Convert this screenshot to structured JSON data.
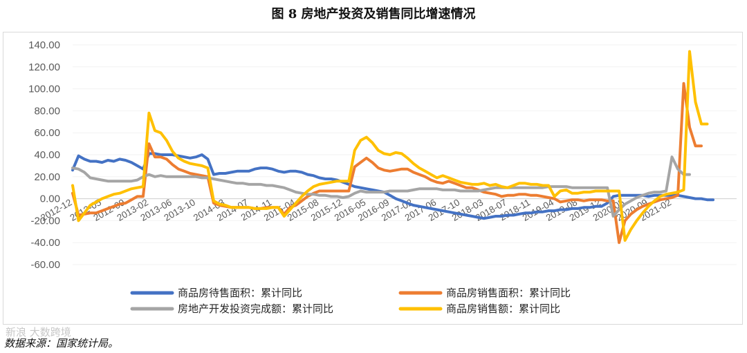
{
  "figure": {
    "title": "图 8  房地产投资及销售同比增速情况",
    "source": "数据来源：国家统计局。",
    "watermark": "新浪 大数跨境"
  },
  "chart_data": {
    "type": "line",
    "yticks": [
      "140.00",
      "120.00",
      "100.00",
      "80.00",
      "60.00",
      "40.00",
      "20.00",
      "0.00",
      "-20.00",
      "-40.00",
      "-60.00"
    ],
    "ylim": [
      -60,
      140
    ],
    "xlim": [
      0,
      113
    ],
    "x_tick_labels": [
      {
        "i": 0,
        "label": "2012-12"
      },
      {
        "i": 5,
        "label": "2012-05"
      },
      {
        "i": 9,
        "label": "2012-09"
      },
      {
        "i": 13,
        "label": "2013-02"
      },
      {
        "i": 17,
        "label": "2013-06"
      },
      {
        "i": 21,
        "label": "2013-10"
      },
      {
        "i": 26,
        "label": "2014-03"
      },
      {
        "i": 30,
        "label": "2014-07"
      },
      {
        "i": 34,
        "label": "2014-11"
      },
      {
        "i": 38,
        "label": "2015-04"
      },
      {
        "i": 42,
        "label": "2015-08"
      },
      {
        "i": 46,
        "label": "2015-12"
      },
      {
        "i": 50,
        "label": "2016-05"
      },
      {
        "i": 54,
        "label": "2016-09"
      },
      {
        "i": 58,
        "label": "2017-02"
      },
      {
        "i": 62,
        "label": "2017-06"
      },
      {
        "i": 66,
        "label": "2017-10"
      },
      {
        "i": 70,
        "label": "2018-03"
      },
      {
        "i": 74,
        "label": "2018-07"
      },
      {
        "i": 78,
        "label": "2018-11"
      },
      {
        "i": 82,
        "label": "2019-04"
      },
      {
        "i": 86,
        "label": "2019-08"
      },
      {
        "i": 90,
        "label": "2019-12"
      },
      {
        "i": 94,
        "label": "2020-05"
      },
      {
        "i": 98,
        "label": "2020-09"
      },
      {
        "i": 102,
        "label": "2021-02"
      }
    ],
    "series": [
      {
        "name": "商品房待售面积：累计同比",
        "color": "#4472C4",
        "values": [
          26,
          39,
          36,
          34,
          34,
          33,
          35,
          34,
          36,
          35,
          33,
          30,
          27,
          41,
          41,
          40,
          40,
          40,
          39,
          38,
          37,
          38,
          40,
          36,
          22,
          23,
          23,
          24,
          25,
          25,
          25,
          27,
          28,
          28,
          27,
          25,
          24,
          25,
          25,
          24,
          22,
          21,
          19,
          18,
          18,
          17,
          15,
          13,
          11,
          10,
          9,
          8,
          7,
          6,
          3,
          0,
          -2,
          -4,
          -6,
          -7,
          -8,
          -9,
          -10,
          -11,
          -12,
          -13,
          -14,
          -15,
          -16,
          -17,
          -18,
          -17,
          -16,
          -16,
          -15,
          -15,
          -14,
          -13,
          -13,
          -12,
          -12,
          -11,
          -11,
          -10,
          -10,
          -9,
          -9,
          -8,
          -8,
          -7,
          -7,
          -4,
          2,
          3,
          3,
          3,
          3,
          3,
          2,
          3,
          3,
          3,
          3,
          3,
          2,
          1,
          0,
          0,
          -1,
          -1
        ]
      },
      {
        "name": "商品房销售面积：累计同比",
        "color": "#ED7D31",
        "values": [
          5,
          -15,
          -14,
          -13,
          -13,
          -11,
          -9,
          -7,
          -5,
          -4,
          -1,
          2,
          2,
          50,
          38,
          38,
          36,
          31,
          27,
          25,
          23,
          22,
          21,
          20,
          -4,
          -6,
          -7,
          -8,
          -8,
          -8,
          -8,
          -9,
          -9,
          -8,
          -8,
          -8,
          -14,
          -8,
          -6,
          -2,
          2,
          5,
          7,
          7,
          7,
          7,
          7,
          7,
          29,
          33,
          37,
          33,
          28,
          26,
          25,
          26,
          27,
          27,
          24,
          22,
          20,
          17,
          15,
          14,
          16,
          14,
          12,
          10,
          10,
          8,
          6,
          5,
          4,
          2,
          3,
          3,
          4,
          4,
          3,
          3,
          2,
          1,
          0,
          -3,
          -2,
          -1,
          -1,
          -2,
          -1,
          -1,
          -1,
          -2,
          -2,
          -40,
          -20,
          -14,
          -10,
          -7,
          -5,
          -3,
          -1,
          0,
          1,
          3,
          105,
          65,
          48,
          48
        ]
      },
      {
        "name": "房地产开发投资完成额：累计同比",
        "color": "#A5A5A5",
        "values": [
          28,
          27,
          24,
          19,
          18,
          17,
          16,
          16,
          16,
          16,
          16,
          17,
          20,
          22,
          20,
          21,
          20,
          20,
          20,
          20,
          20,
          20,
          19,
          19,
          18,
          17,
          16,
          15,
          14,
          14,
          13,
          13,
          13,
          12,
          12,
          11,
          10,
          8,
          6,
          5,
          4,
          4,
          3,
          3,
          2,
          2,
          1,
          2,
          5,
          7,
          6,
          6,
          6,
          6,
          7,
          7,
          7,
          7,
          8,
          9,
          9,
          9,
          9,
          8,
          8,
          8,
          7,
          7,
          7,
          7,
          8,
          9,
          10,
          10,
          10,
          10,
          10,
          10,
          10,
          10,
          10,
          11,
          11,
          11,
          11,
          10,
          10,
          10,
          10,
          10,
          10,
          10,
          -16,
          -10,
          -5,
          -2,
          1,
          3,
          5,
          6,
          6,
          7,
          38,
          27,
          22,
          22
        ]
      },
      {
        "name": "商品房销售额：累计同比",
        "color": "#FFC000",
        "values": [
          12,
          -20,
          -13,
          -6,
          -3,
          0,
          2,
          4,
          5,
          7,
          9,
          10,
          11,
          78,
          62,
          60,
          53,
          43,
          37,
          34,
          32,
          31,
          30,
          28,
          -2,
          -5,
          -6,
          -8,
          -8,
          -8,
          -8,
          -9,
          -9,
          -9,
          -8,
          -8,
          -16,
          -10,
          -4,
          2,
          7,
          11,
          13,
          14,
          15,
          16,
          16,
          16,
          44,
          53,
          56,
          51,
          44,
          41,
          40,
          42,
          41,
          37,
          32,
          28,
          25,
          22,
          19,
          21,
          19,
          17,
          15,
          14,
          13,
          13,
          14,
          12,
          13,
          11,
          10,
          12,
          14,
          14,
          13,
          13,
          12,
          12,
          2,
          7,
          8,
          5,
          5,
          6,
          6,
          7,
          7,
          7,
          7,
          7,
          -38,
          -28,
          -20,
          -13,
          -7,
          -2,
          2,
          4,
          5,
          6,
          8,
          134,
          88,
          68,
          68
        ]
      }
    ]
  }
}
